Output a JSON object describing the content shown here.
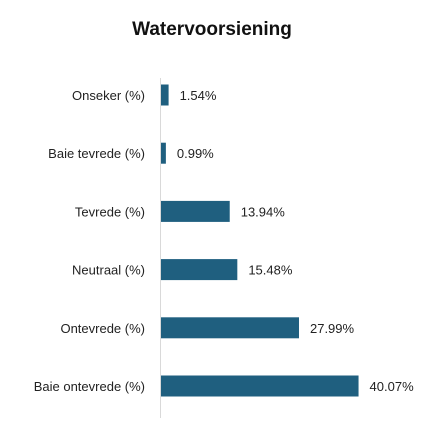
{
  "chart_data": {
    "type": "bar",
    "orientation": "horizontal",
    "title": "Watervoorsiening",
    "xlabel": "",
    "ylabel": "",
    "grid": false,
    "legend": "none",
    "categories": [
      "Onseker (%)",
      "Baie tevrede (%)",
      "Tevrede (%)",
      "Neutraal (%)",
      "Ontevrede (%)",
      "Baie ontevrede (%)"
    ],
    "values": [
      1.54,
      0.99,
      13.94,
      15.48,
      27.99,
      40.07
    ],
    "value_labels": [
      "1.54%",
      "0.99%",
      "13.94%",
      "15.48%",
      "27.99%",
      "40.07%"
    ],
    "bar_color": "#1f5f7f"
  }
}
